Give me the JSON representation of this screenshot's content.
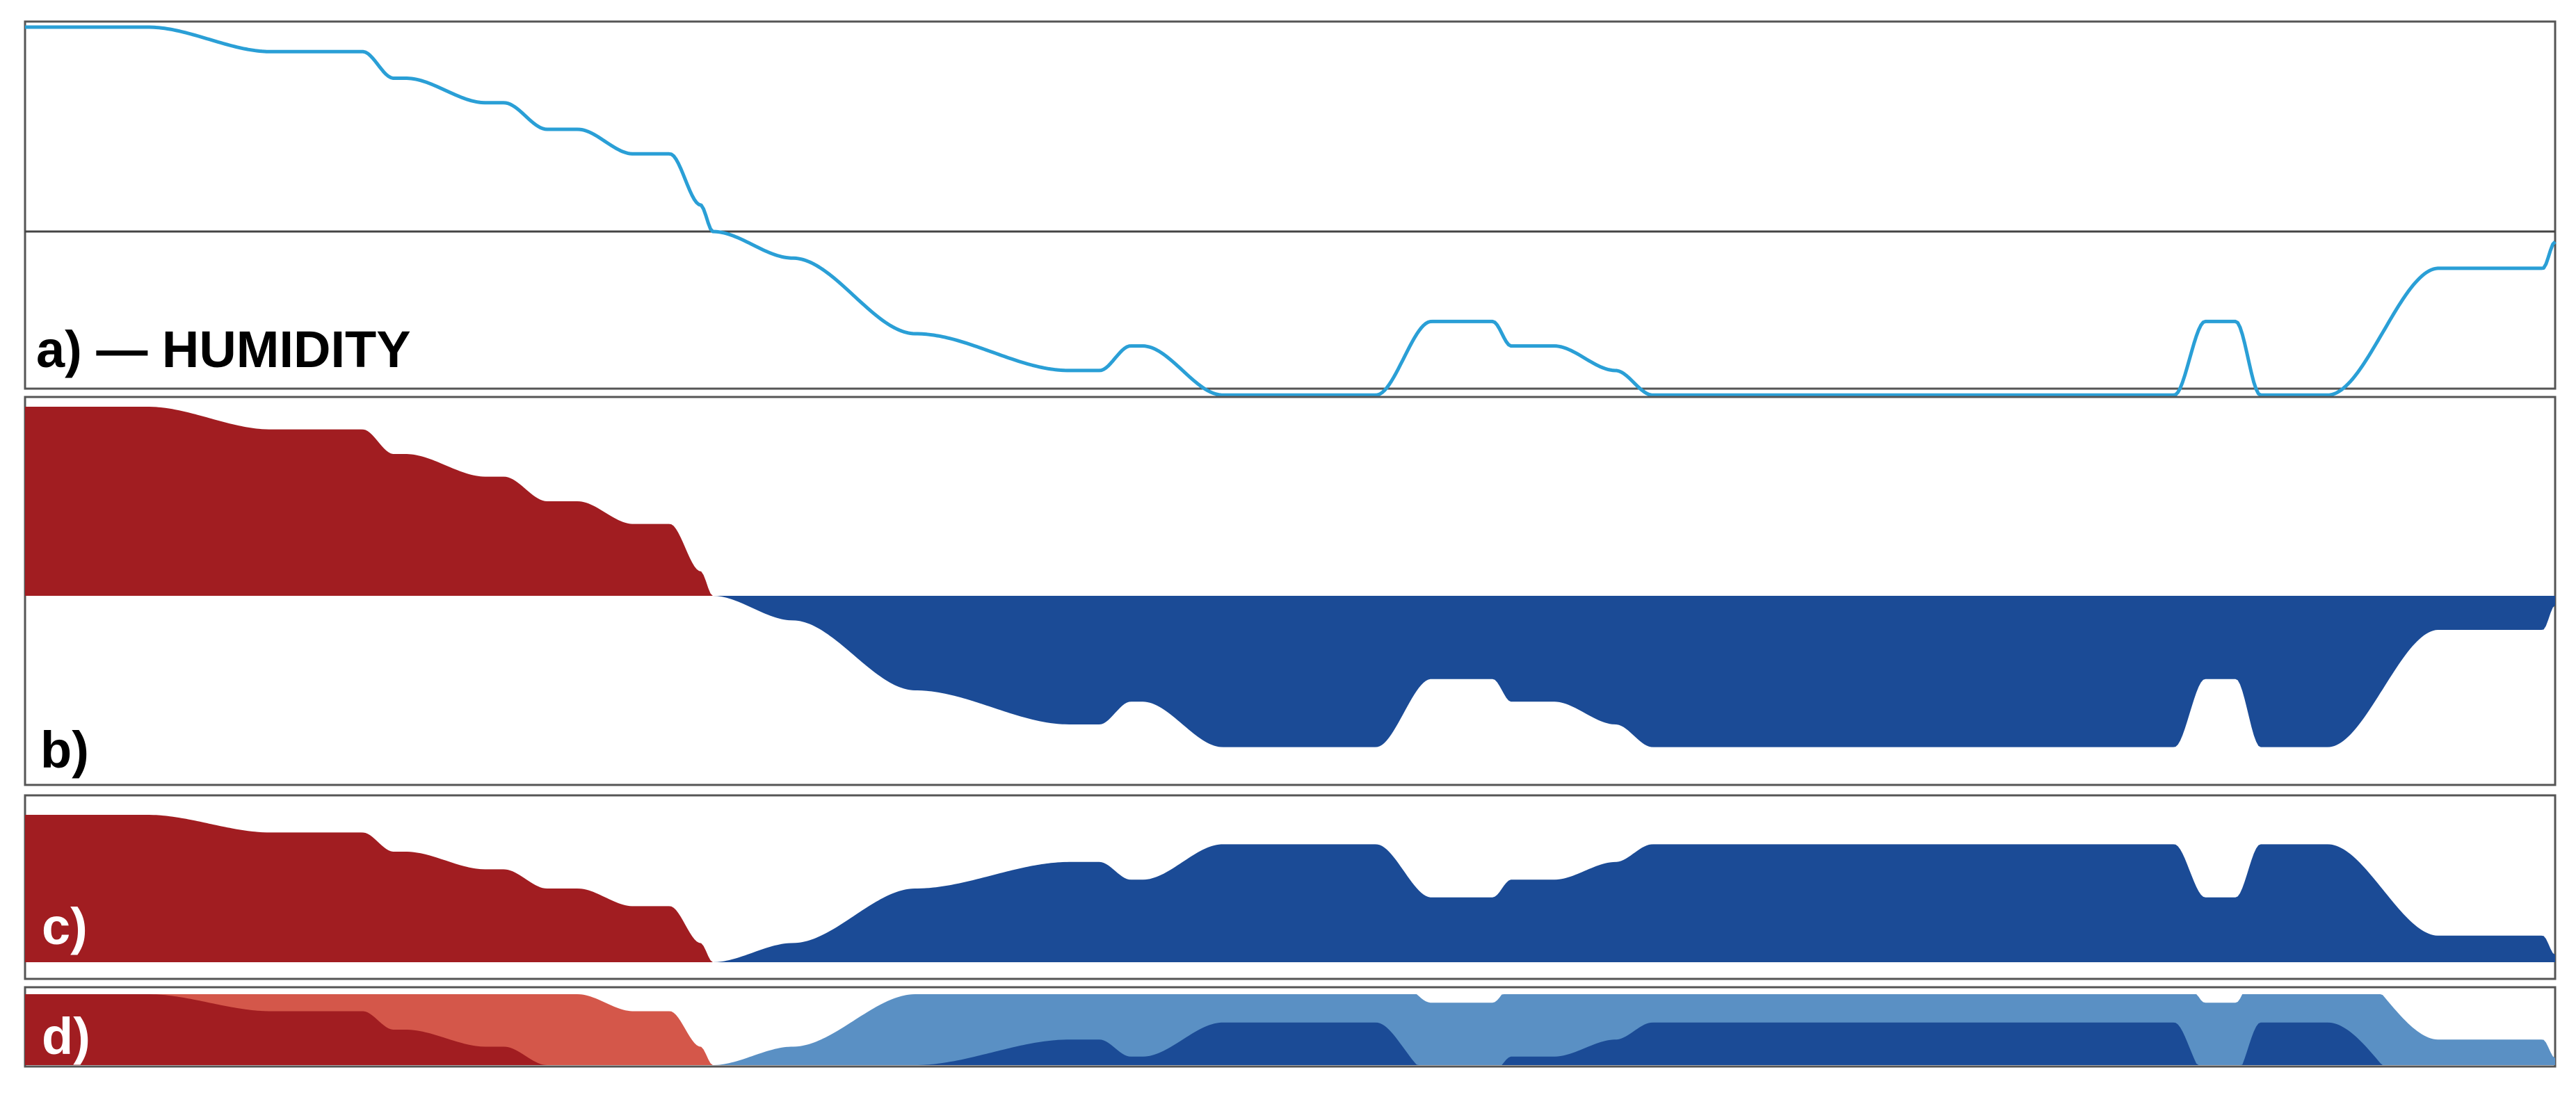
{
  "colors": {
    "line": "#2a9fd6",
    "positive": "#a11d21",
    "negative": "#1b4b96",
    "positive_light": "#d4574a",
    "negative_light": "#5a90c4",
    "frame": "#555555",
    "label_dark": "#000000",
    "label_light": "#ffffff"
  },
  "labels": {
    "a": "a) — HUMIDITY",
    "b": "b)",
    "c": "c)",
    "d": "d)"
  },
  "chart_data": [
    {
      "panel": "a",
      "type": "line",
      "title": "a) — HUMIDITY",
      "baseline": 0,
      "series": [
        {
          "x": [
            0,
            20,
            40,
            55,
            60,
            62,
            75,
            78,
            85,
            90,
            99,
            105,
            110,
            112,
            125,
            145,
            170,
            175,
            180,
            182,
            195,
            205,
            220,
            229,
            239,
            242,
            249,
            259,
            265,
            269,
            276,
            300,
            330,
            350,
            355,
            360,
            364,
            375,
            393,
            410,
            412
          ],
          "y": [
            1.0,
            1.0,
            0.88,
            0.88,
            0.75,
            0.75,
            0.63,
            0.63,
            0.5,
            0.5,
            0.38,
            0.38,
            0.13,
            0.0,
            -0.13,
            -0.5,
            -0.68,
            -0.68,
            -0.56,
            -0.56,
            -0.8,
            -0.8,
            -0.8,
            -0.44,
            -0.44,
            -0.56,
            -0.56,
            -0.68,
            -0.8,
            -0.8,
            -0.8,
            -0.8,
            -0.8,
            -0.8,
            -0.44,
            -0.44,
            -0.8,
            -0.8,
            -0.18,
            -0.18,
            -0.05
          ]
        }
      ]
    },
    {
      "panel": "b",
      "type": "area",
      "title": "b)",
      "baseline": 0
    },
    {
      "panel": "c",
      "type": "area",
      "title": "c)",
      "baseline": 0
    },
    {
      "panel": "d",
      "type": "area",
      "title": "d)",
      "baseline": 0,
      "bands": 2
    }
  ]
}
